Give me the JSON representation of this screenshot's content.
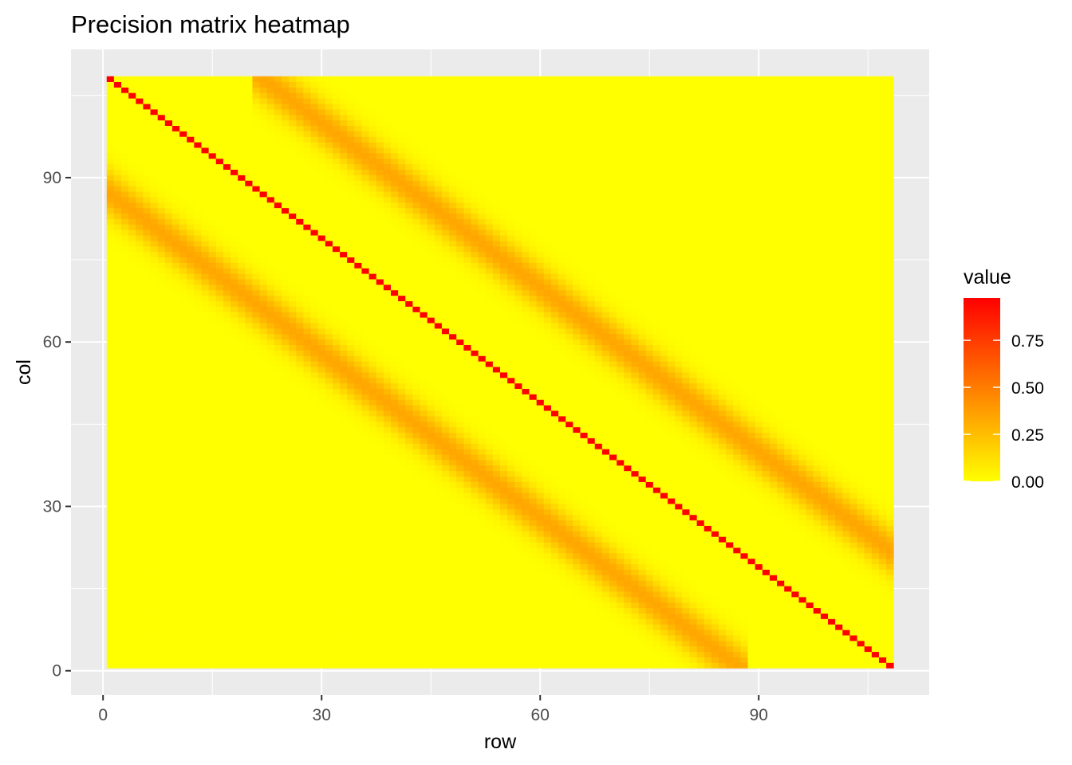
{
  "chart_data": {
    "type": "heatmap",
    "title": "Precision matrix heatmap",
    "xlabel": "row",
    "ylabel": "col",
    "x_range": [
      1,
      108
    ],
    "y_range": [
      1,
      108
    ],
    "xlim": [
      -4.4,
      113.4
    ],
    "ylim": [
      -4.4,
      113.4
    ],
    "x_ticks": [
      0,
      30,
      60,
      90
    ],
    "y_ticks": [
      0,
      30,
      60,
      90
    ],
    "grid": true,
    "panel_background": "#EBEBEB",
    "gridline_color": "#FFFFFF",
    "matrix_size": 108,
    "structure": {
      "main_diagonal": {
        "description": "y = 109 - x",
        "value": 1.0
      },
      "lower_band": {
        "from": [
          1,
          87
        ],
        "to": [
          87,
          1
        ],
        "peak_value": 0.35,
        "width": 3
      },
      "upper_band": {
        "from": [
          22,
          108
        ],
        "to": [
          108,
          22
        ],
        "peak_value": 0.35,
        "width": 3
      },
      "background_value": 0.0
    },
    "color_scale": {
      "low": "#FFFF00",
      "high": "#FF0000",
      "limits": [
        0,
        1
      ]
    },
    "legend": {
      "title": "value",
      "position": "right",
      "breaks": [
        0.0,
        0.25,
        0.5,
        0.75
      ],
      "labels": [
        "0.00",
        "0.25",
        "0.50",
        "0.75"
      ]
    }
  }
}
